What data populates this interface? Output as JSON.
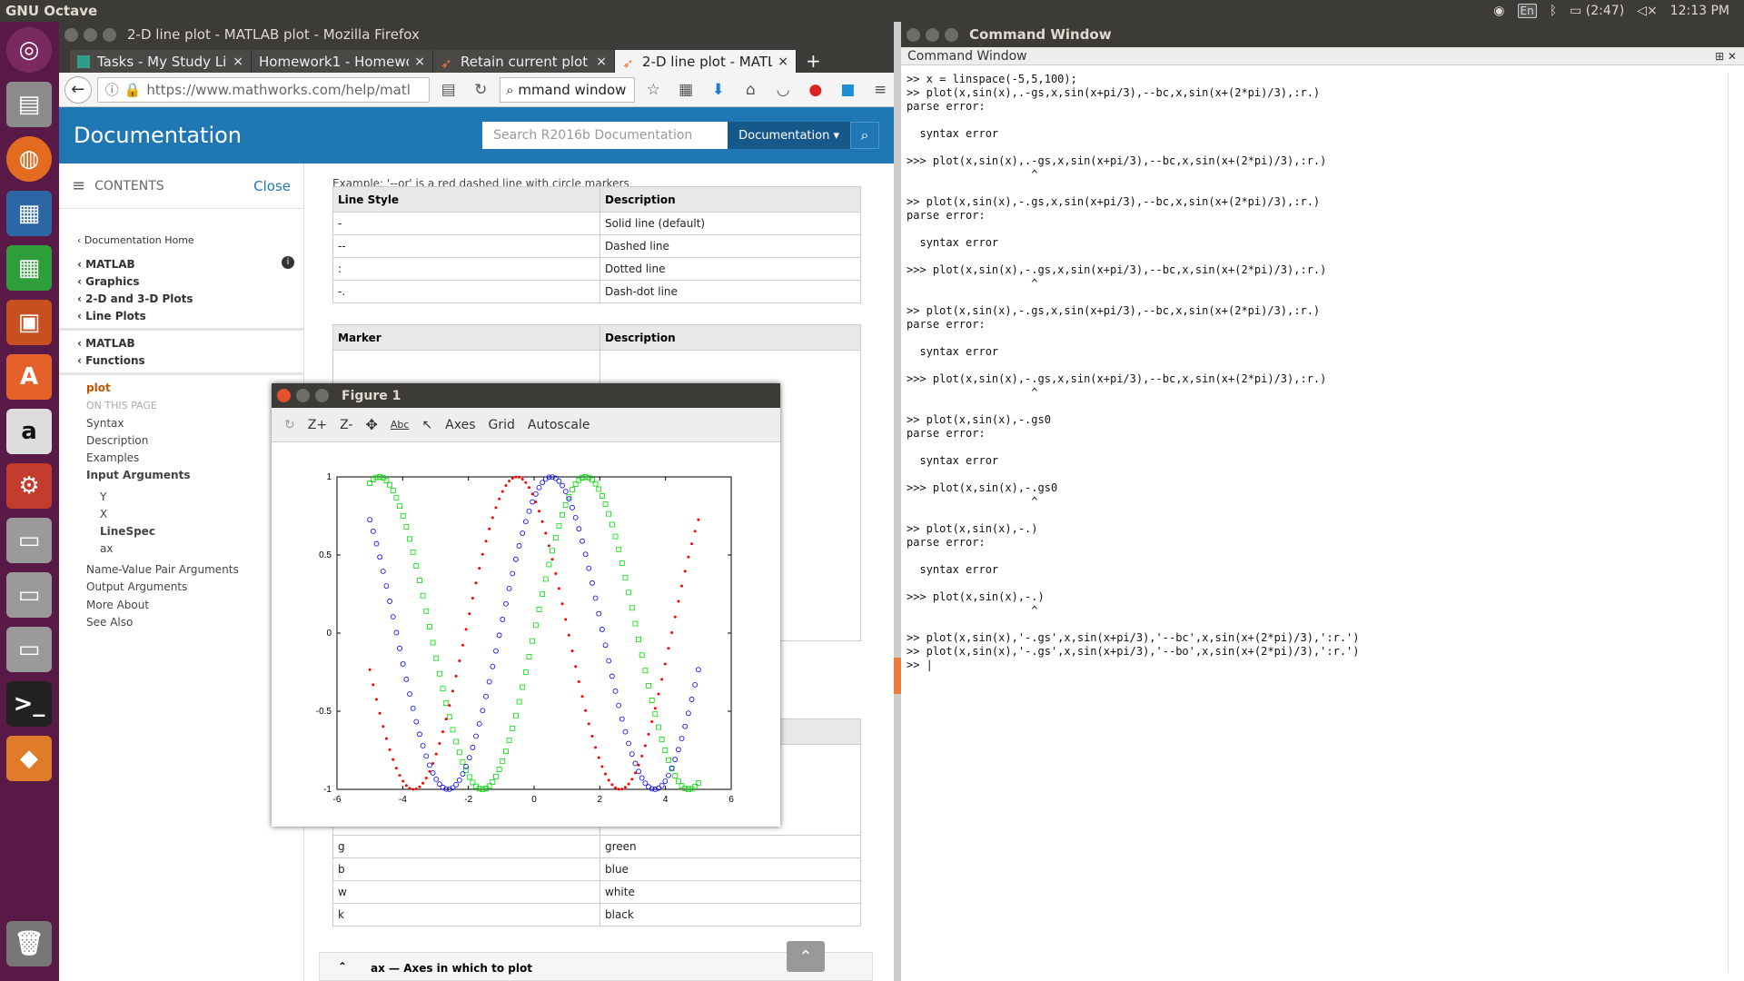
{
  "topbar": {
    "app": "GNU Octave",
    "lang": "En",
    "battery": "(2:47)",
    "clock": "12:13 PM"
  },
  "firefox": {
    "title": "2-D line plot - MATLAB plot - Mozilla Firefox",
    "tabs": [
      {
        "label": "Tasks - My Study Life"
      },
      {
        "label": "Homework1 - Homewo..."
      },
      {
        "label": "Retain current plot ..."
      },
      {
        "label": "2-D line plot - MATL..."
      }
    ],
    "url": "https://www.mathworks.com/help/matl",
    "search": "mmand window"
  },
  "doc": {
    "header": "Documentation",
    "search_placeholder": "Search R2016b Documentation",
    "search_scope": "Documentation",
    "contents": "CONTENTS",
    "close": "Close",
    "breadcrumbs": [
      "Documentation Home",
      "MATLAB",
      "Graphics",
      "2-D and 3-D Plots",
      "Line Plots",
      "MATLAB",
      "Functions"
    ],
    "page": {
      "title": "plot",
      "on_this_page": "ON THIS PAGE",
      "sections": [
        "Syntax",
        "Description",
        "Examples",
        "Input Arguments",
        "Y",
        "X",
        "LineSpec",
        "ax",
        "Name-Value Pair Arguments",
        "Output Arguments",
        "More About",
        "See Also"
      ]
    },
    "example_note": "Example:    '--or' is a red dashed line with circle markers",
    "linestyle_table": {
      "headers": [
        "Line Style",
        "Description"
      ],
      "rows": [
        [
          "-",
          "Solid line (default)"
        ],
        [
          "--",
          "Dashed line"
        ],
        [
          ":",
          "Dotted line"
        ],
        [
          "-.",
          "Dash-dot line"
        ]
      ]
    },
    "marker_table": {
      "headers": [
        "Marker",
        "Description"
      ]
    },
    "color_rows": [
      [
        "g",
        "green"
      ],
      [
        "b",
        "blue"
      ],
      [
        "w",
        "white"
      ],
      [
        "k",
        "black"
      ]
    ],
    "ax_section": "ax — Axes in which to plot"
  },
  "figure": {
    "title": "Figure 1",
    "toolbar": [
      "Z+",
      "Z-",
      "Axes",
      "Grid",
      "Autoscale"
    ],
    "chart_data": {
      "type": "scatter",
      "xlim": [
        -6,
        6
      ],
      "ylim": [
        -1,
        1
      ],
      "xticks": [
        -6,
        -4,
        -2,
        0,
        2,
        4,
        6
      ],
      "yticks": [
        -1,
        -0.5,
        0,
        0.5,
        1
      ],
      "x": {
        "start": -5,
        "end": 5,
        "count": 100
      },
      "series": [
        {
          "expr": "sin(x)",
          "marker": "square",
          "color": "#00dd00"
        },
        {
          "expr": "sin(x+pi/3)",
          "marker": "circle",
          "color": "#0000ff"
        },
        {
          "expr": "sin(x+2pi/3)",
          "marker": "dot",
          "color": "#ff0000"
        }
      ]
    }
  },
  "command_window": {
    "title": "Command Window",
    "header": "Command Window",
    "lines": [
      ">> x = linspace(-5,5,100);",
      ">> plot(x,sin(x),.-gs,x,sin(x+pi/3),--bc,x,sin(x+(2*pi)/3),:r.)",
      "parse error:",
      "",
      "  syntax error",
      "",
      ">>> plot(x,sin(x),.-gs,x,sin(x+pi/3),--bc,x,sin(x+(2*pi)/3),:r.)",
      "                   ^",
      "",
      ">> plot(x,sin(x),-.gs,x,sin(x+pi/3),--bc,x,sin(x+(2*pi)/3),:r.)",
      "parse error:",
      "",
      "  syntax error",
      "",
      ">>> plot(x,sin(x),-.gs,x,sin(x+pi/3),--bc,x,sin(x+(2*pi)/3),:r.)",
      "                   ^",
      "",
      ">> plot(x,sin(x),-.gs,x,sin(x+pi/3),--bc,x,sin(x+(2*pi)/3),:r.)",
      "parse error:",
      "",
      "  syntax error",
      "",
      ">>> plot(x,sin(x),-.gs,x,sin(x+pi/3),--bc,x,sin(x+(2*pi)/3),:r.)",
      "                   ^",
      "",
      ">> plot(x,sin(x),-.gs0",
      "parse error:",
      "",
      "  syntax error",
      "",
      ">>> plot(x,sin(x),-.gs0",
      "                   ^",
      "",
      ">> plot(x,sin(x),-.)",
      "parse error:",
      "",
      "  syntax error",
      "",
      ">>> plot(x,sin(x),-.)",
      "                   ^",
      "",
      ">> plot(x,sin(x),'-.gs',x,sin(x+pi/3),'--bc',x,sin(x+(2*pi)/3),':r.')",
      ">> plot(x,sin(x),'-.gs',x,sin(x+pi/3),'--bo',x,sin(x+(2*pi)/3),':r.')",
      ">> |"
    ]
  }
}
